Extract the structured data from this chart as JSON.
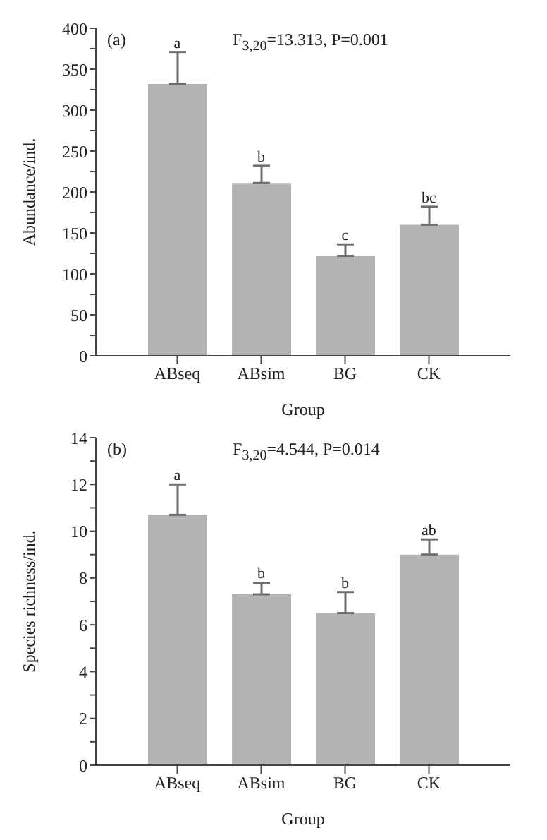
{
  "chart_data": [
    {
      "type": "bar",
      "categories": [
        "ABseq",
        "ABsim",
        "BG",
        "CK"
      ],
      "values": [
        332,
        211,
        122,
        160
      ],
      "errors": [
        39,
        21,
        14,
        22
      ],
      "color": "#b3b4b6",
      "xlabel": "Group",
      "ylabel": "Abundance/ind.",
      "ylim": [
        0,
        400
      ],
      "yticks": [
        0,
        {
          "value": 25,
          "label": null
        },
        50,
        {
          "value": 75,
          "label": null
        },
        100,
        {
          "value": 125,
          "label": null
        },
        150,
        {
          "value": 175,
          "label": null
        },
        200,
        {
          "value": 225,
          "label": null
        },
        250,
        {
          "value": 275,
          "label": null
        },
        300,
        {
          "value": 325,
          "label": null
        },
        350,
        {
          "value": 375,
          "label": null
        },
        400
      ],
      "annotations": [
        "(a)",
        "F$_{3,20}$=13.313, P=0.001",
        {
          "text": "a",
          "x": "ABseq",
          "y": 371
        },
        {
          "text": "b",
          "x": "ABsim",
          "y": 232
        },
        {
          "text": "c",
          "x": "BG",
          "y": 136
        },
        {
          "text": "bc",
          "x": "CK",
          "y": 182
        }
      ]
    },
    {
      "type": "bar",
      "categories": [
        "ABseq",
        "ABsim",
        "BG",
        "CK"
      ],
      "values": [
        10.7,
        7.3,
        6.5,
        9.0
      ],
      "errors": [
        1.3,
        0.5,
        0.9,
        0.65
      ],
      "color": "#b3b4b6",
      "xlabel": "Group",
      "ylabel": "Species richness/ind.",
      "ylim": [
        0,
        14
      ],
      "yticks": [
        0,
        {
          "value": 1,
          "label": null
        },
        2,
        {
          "value": 3,
          "label": null
        },
        4,
        {
          "value": 5,
          "label": null
        },
        6,
        {
          "value": 7,
          "label": null
        },
        8,
        {
          "value": 9,
          "label": null
        },
        10,
        {
          "value": 11,
          "label": null
        },
        12,
        {
          "value": 13,
          "label": null
        },
        14
      ],
      "annotations": [
        "(b)",
        "F$_{3,20}$=4.544, P=0.014",
        {
          "text": "a",
          "x": "ABseq",
          "y": 12
        },
        {
          "text": "b",
          "x": "ABsim",
          "y": 7.8
        },
        {
          "text": "b",
          "x": "BG",
          "y": 7.4
        },
        {
          "text": "ab",
          "x": "CK",
          "y": 9.65
        }
      ]
    }
  ]
}
